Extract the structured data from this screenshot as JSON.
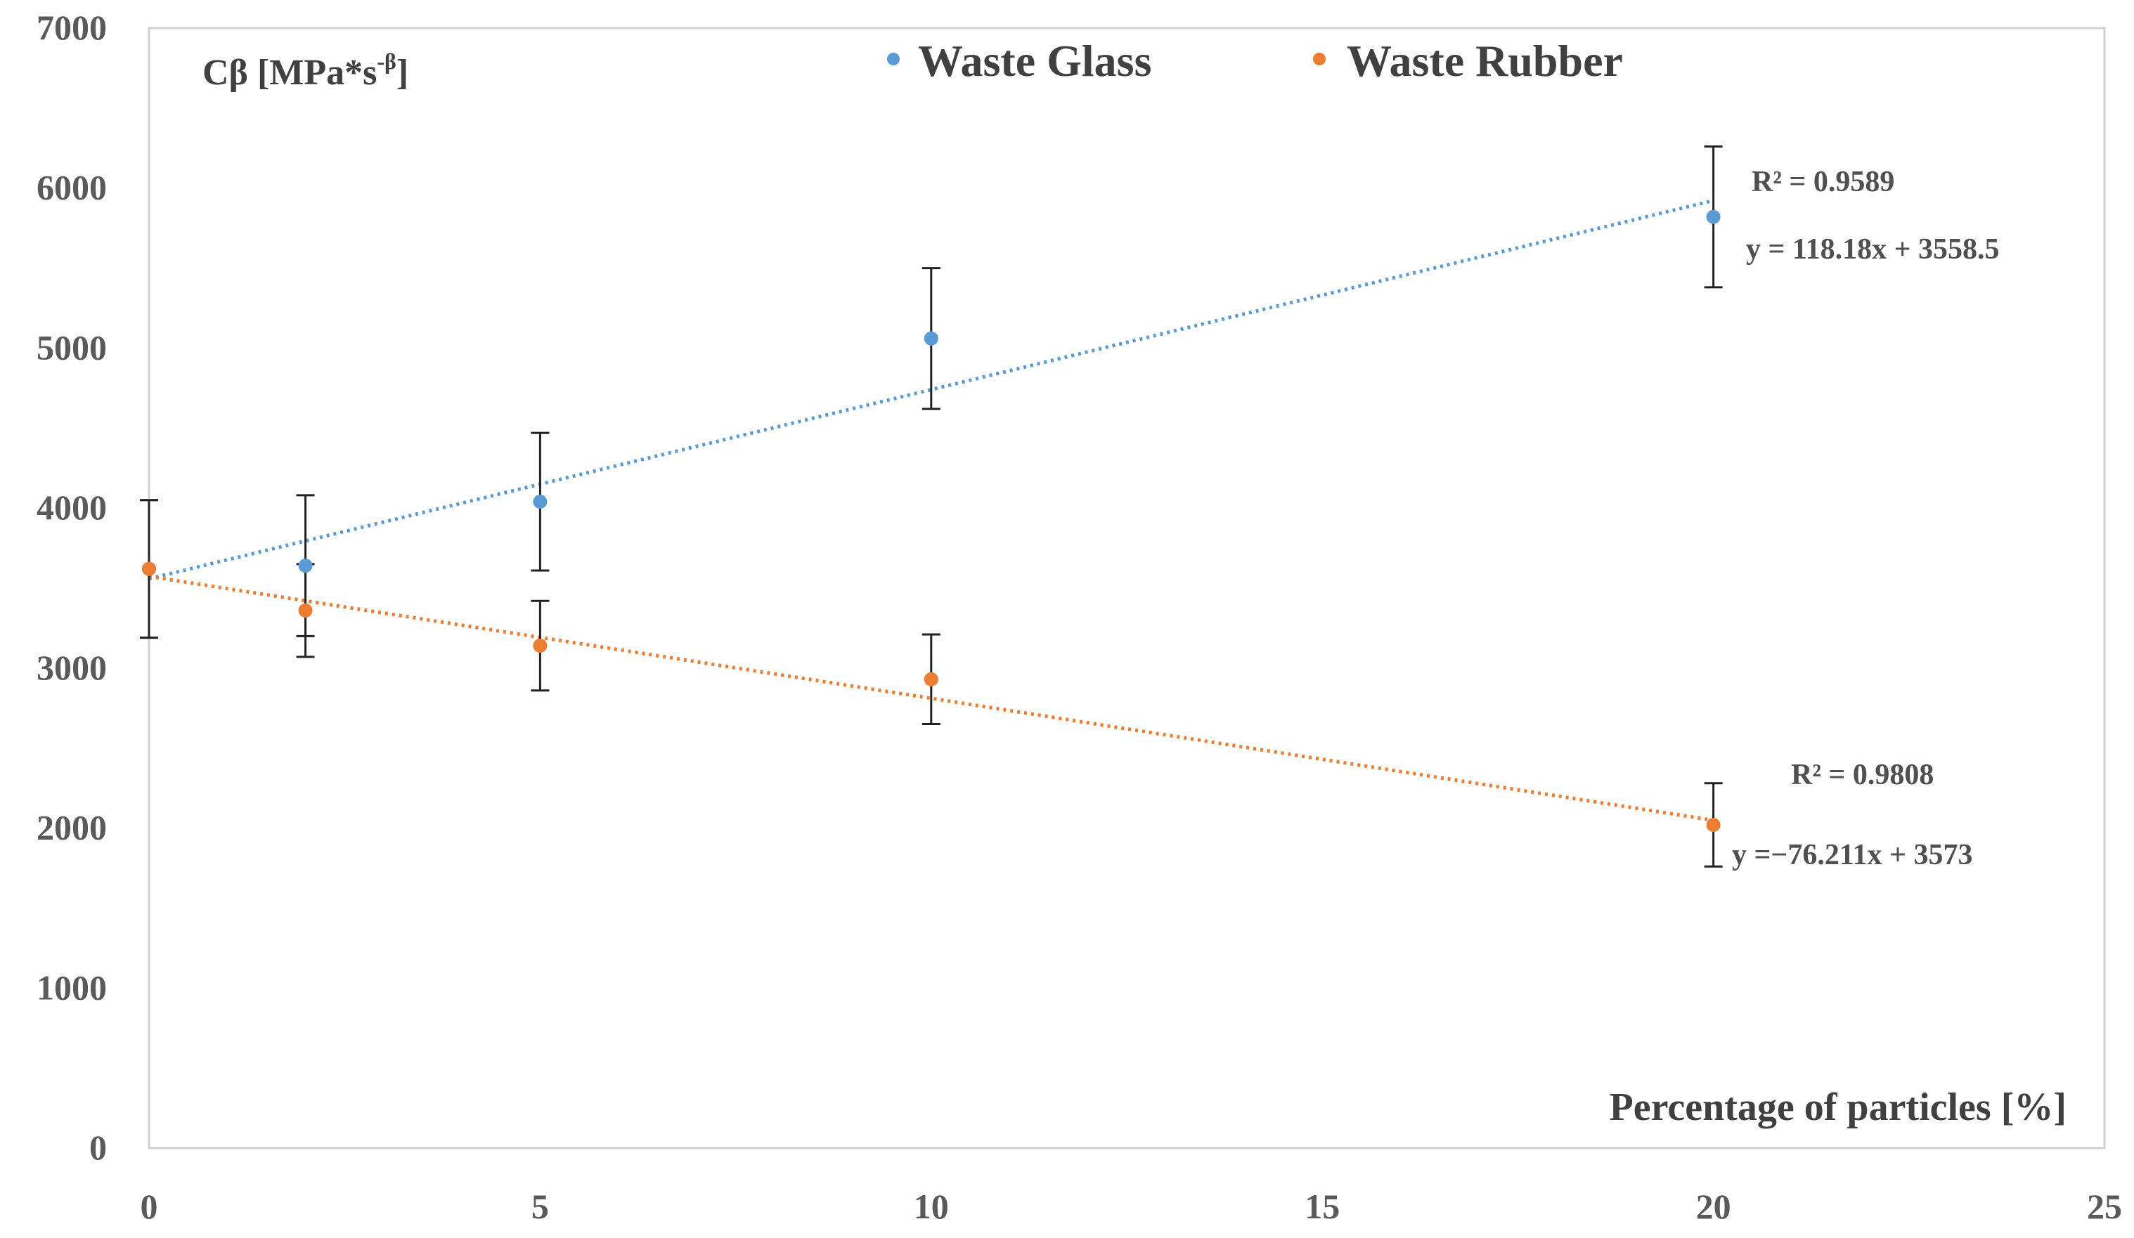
{
  "chart_data": {
    "type": "scatter",
    "xlabel": "Percentage of particles   [%]",
    "ylabel": {
      "main": "Cβ   [MPa*s",
      "sup": "-β",
      "end": "]"
    },
    "xlim": [
      0,
      25
    ],
    "ylim": [
      0,
      7000
    ],
    "xticks": [
      0,
      5,
      10,
      15,
      20,
      25
    ],
    "yticks": [
      0,
      1000,
      2000,
      3000,
      4000,
      5000,
      6000,
      7000
    ],
    "legend_position": "top",
    "series": [
      {
        "name": "Waste Glass",
        "color": "#5b9bd5",
        "x": [
          0,
          2,
          5,
          10,
          20
        ],
        "y": [
          3620,
          3640,
          4040,
          5060,
          5820
        ],
        "err": [
          430,
          440,
          430,
          440,
          440
        ],
        "trend": {
          "slope": 118.18,
          "intercept": 3558.5,
          "r2_label": "R² = 0.9589",
          "eq_label": "y = 118.18x + 3558.5"
        }
      },
      {
        "name": "Waste Rubber",
        "color": "#ed7d31",
        "x": [
          0,
          2,
          5,
          10,
          20
        ],
        "y": [
          3620,
          3360,
          3140,
          2930,
          2020
        ],
        "err": [
          430,
          290,
          280,
          280,
          260
        ],
        "trend": {
          "slope": -76.211,
          "intercept": 3573,
          "r2_label": "R² = 0.9808",
          "eq_label": "y =−76.211x + 3573"
        }
      }
    ]
  }
}
